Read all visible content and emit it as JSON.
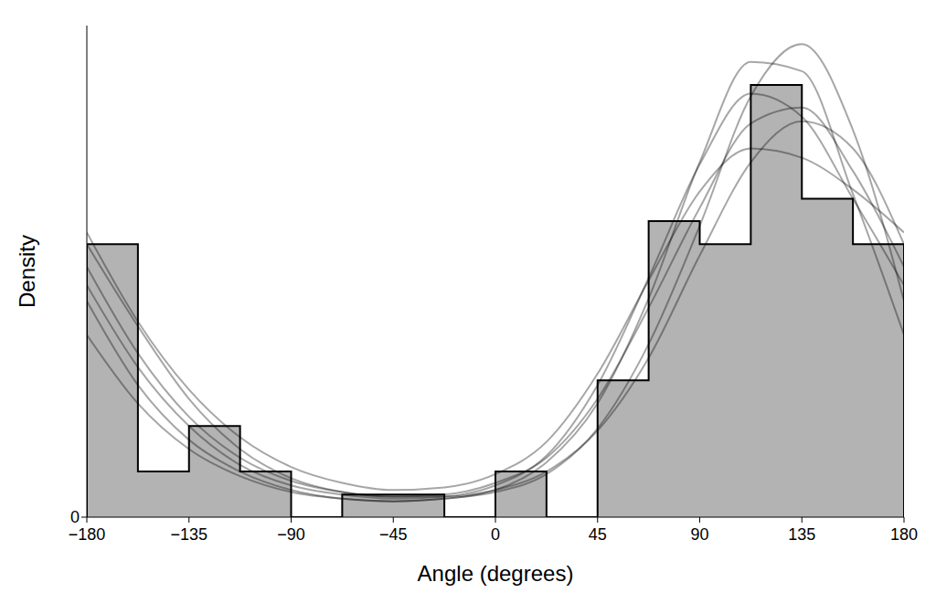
{
  "chart_data": {
    "type": "histogram",
    "xlabel": "Angle (degrees)",
    "ylabel": "Density",
    "bins": [
      -180,
      -157.5,
      -135,
      -112.5,
      -90,
      -67.5,
      -45,
      -22.5,
      0,
      22.5,
      45,
      67.5,
      90,
      112.5,
      135,
      157.5,
      180
    ],
    "values": [
      0.00533,
      0.00089,
      0.00178,
      0.00089,
      0,
      0.00044,
      0.00044,
      0,
      0.00089,
      0,
      0.00267,
      0.00578,
      0.00533,
      0.00844,
      0.00622,
      0.00533
    ],
    "color": "#b3b3b3",
    "xlim": [
      -180,
      180
    ],
    "xticks": [
      {
        "value": -180,
        "label": "−180"
      },
      {
        "value": -135,
        "label": "−135"
      },
      {
        "value": -90,
        "label": "−90"
      },
      {
        "value": -45,
        "label": "−45"
      },
      0,
      45,
      90,
      135,
      180
    ],
    "ylim": [
      0,
      0.0096
    ],
    "yticks": [
      0
    ],
    "grid": false,
    "x": [
      -180,
      -157.5,
      -135,
      -112.5,
      -90,
      -67.5,
      -45,
      -22.5,
      0,
      22.5,
      45,
      67.5,
      90,
      112.5,
      135,
      157.5,
      180
    ],
    "series": [
      {
        "type": "line",
        "color": "#000000",
        "values": [
          0.00489,
          0.0032,
          0.00196,
          0.00116,
          0.00071,
          0.00049,
          0.0004,
          0.00044,
          0.00067,
          0.00116,
          0.00231,
          0.00409,
          0.00604,
          0.00769,
          0.008,
          0.00676,
          0.00489
        ]
      },
      {
        "type": "line",
        "color": "#000000",
        "values": [
          0.00422,
          0.00258,
          0.00151,
          0.00089,
          0.00053,
          0.00036,
          0.00031,
          0.00036,
          0.00049,
          0.00084,
          0.00173,
          0.00338,
          0.00569,
          0.00822,
          0.00924,
          0.00756,
          0.00422
        ]
      },
      {
        "type": "line",
        "color": "#000000",
        "values": [
          0.00556,
          0.00382,
          0.00249,
          0.00156,
          0.00098,
          0.00067,
          0.00053,
          0.00058,
          0.00084,
          0.00147,
          0.0028,
          0.00462,
          0.00636,
          0.0072,
          0.00702,
          0.0064,
          0.00556
        ]
      },
      {
        "type": "line",
        "color": "#000000",
        "values": [
          0.00453,
          0.00293,
          0.00178,
          0.00102,
          0.00062,
          0.00044,
          0.00036,
          0.0004,
          0.00062,
          0.0012,
          0.00258,
          0.00467,
          0.00689,
          0.00827,
          0.00782,
          0.00622,
          0.00453
        ]
      },
      {
        "type": "line",
        "color": "#000000",
        "values": [
          0.00533,
          0.00373,
          0.00231,
          0.00133,
          0.00076,
          0.00049,
          0.0004,
          0.0004,
          0.00053,
          0.00089,
          0.00169,
          0.00311,
          0.00511,
          0.00693,
          0.00773,
          0.0072,
          0.00533
        ]
      },
      {
        "type": "line",
        "color": "#000000",
        "values": [
          0.00356,
          0.00222,
          0.00133,
          0.0008,
          0.00049,
          0.00036,
          0.00031,
          0.00036,
          0.00053,
          0.00107,
          0.00222,
          0.00427,
          0.00693,
          0.00889,
          0.00871,
          0.00631,
          0.00356
        ]
      }
    ]
  }
}
